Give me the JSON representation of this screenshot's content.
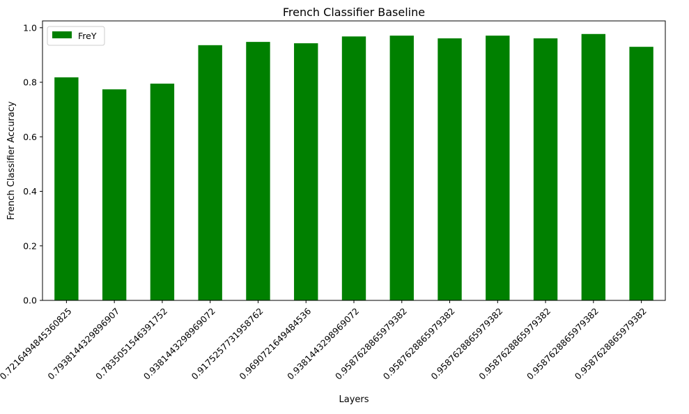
{
  "chart_data": {
    "type": "bar",
    "title": "French Classifier Baseline",
    "xlabel": "Layers",
    "ylabel": "French Classifier Accuracy",
    "categories": [
      "0.7216494845360825",
      "0.7938144329896907",
      "0.7835051546391752",
      "0.9381443298969072",
      "0.9175257731958762",
      "0.9690721649484536",
      "0.9381443298969072",
      "0.9587628865979382",
      "0.9587628865979382",
      "0.9587628865979382",
      "0.9587628865979382",
      "0.9587628865979382",
      "0.9587628865979382"
    ],
    "series": [
      {
        "name": "FreY",
        "color": "#008000",
        "values": [
          0.818,
          0.774,
          0.795,
          0.936,
          0.948,
          0.943,
          0.968,
          0.971,
          0.961,
          0.971,
          0.961,
          0.977,
          0.93
        ]
      }
    ],
    "ylim": [
      0,
      1.025
    ],
    "yticks": [
      "0.0",
      "0.2",
      "0.4",
      "0.6",
      "0.8",
      "1.0"
    ],
    "grid": false,
    "legend_position": "top-left"
  }
}
